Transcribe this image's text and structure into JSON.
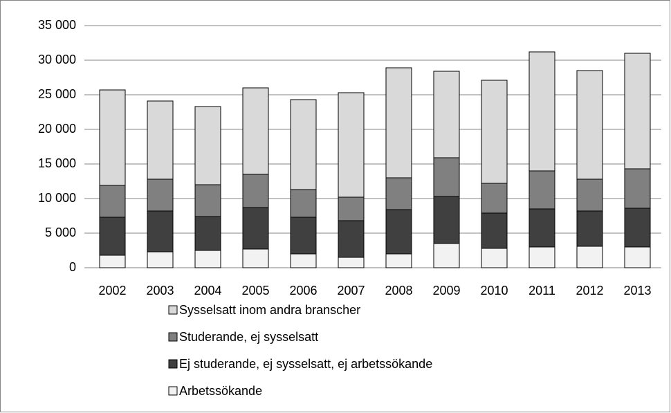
{
  "chart_data": {
    "type": "stacked_bar",
    "categories": [
      "2002",
      "2003",
      "2004",
      "2005",
      "2006",
      "2007",
      "2008",
      "2009",
      "2010",
      "2011",
      "2012",
      "2013"
    ],
    "series": [
      {
        "name": "Arbetssökande",
        "color": "#f2f2f2",
        "values": [
          1800,
          2300,
          2500,
          2700,
          2000,
          1500,
          2000,
          3500,
          2800,
          3000,
          3100,
          3000
        ]
      },
      {
        "name": "Ej studerande, ej sysselsatt, ej arbetssökande",
        "color": "#404040",
        "values": [
          5500,
          5900,
          4900,
          6000,
          5300,
          5300,
          6400,
          6800,
          5100,
          5500,
          5100,
          5600
        ]
      },
      {
        "name": "Studerande, ej sysselsatt",
        "color": "#808080",
        "values": [
          4600,
          4600,
          4600,
          4800,
          4000,
          3400,
          4600,
          5600,
          4300,
          5500,
          4600,
          5700
        ]
      },
      {
        "name": "Sysselsatt inom andra branscher",
        "color": "#d9d9d9",
        "values": [
          13800,
          11300,
          11300,
          12500,
          13000,
          15100,
          15900,
          12500,
          14900,
          17200,
          15700,
          16700
        ]
      }
    ],
    "ylim": [
      0,
      35000
    ],
    "yticks": [
      0,
      {
        "value": 5000,
        "label": "5 000"
      },
      {
        "value": 10000,
        "label": "10 000"
      },
      {
        "value": 15000,
        "label": "15 000"
      },
      {
        "value": 20000,
        "label": "20 000"
      },
      {
        "value": 25000,
        "label": "25 000"
      },
      {
        "value": 30000,
        "label": "30 000"
      },
      {
        "value": 35000,
        "label": "35 000"
      }
    ],
    "grid": true
  }
}
